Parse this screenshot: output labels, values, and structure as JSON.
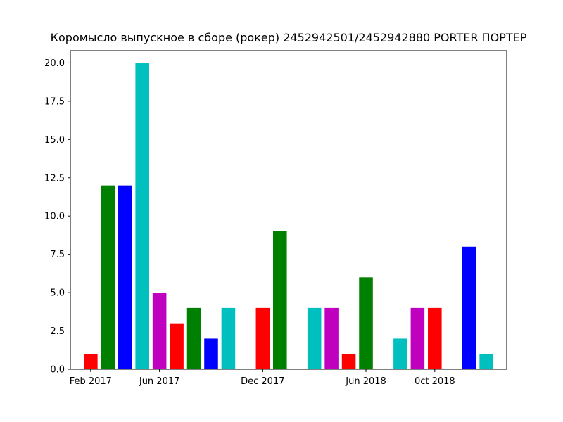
{
  "chart_data": {
    "type": "bar",
    "title": "Коромысло выпускное в сборе (рокер) 2452942501/2452942880 PORTER ПОРТЕР",
    "xlabel": "",
    "ylabel": "",
    "x_type": "date",
    "x_tick_labels": [
      "Feb 2017",
      "Jun 2017",
      "Dec 2017",
      "Jun 2018",
      "0ct 2018"
    ],
    "x_tick_dates": [
      "2017-02-01",
      "2017-06-01",
      "2017-12-01",
      "2018-06-01",
      "2018-10-01"
    ],
    "y_ticks": [
      "0.0",
      "2.5",
      "5.0",
      "7.5",
      "10.0",
      "12.5",
      "15.0",
      "17.5",
      "20.0"
    ],
    "ylim": [
      0,
      20.8
    ],
    "grid": false,
    "legend": "none",
    "colors": {
      "red": "#ff0000",
      "green": "#008000",
      "blue": "#0000ff",
      "cyan": "#00bfbf",
      "magenta": "#bf00bf"
    },
    "bars": [
      {
        "date": "2017-02-01",
        "value": 1,
        "color": "red"
      },
      {
        "date": "2017-03-01",
        "value": 12,
        "color": "green"
      },
      {
        "date": "2017-04-01",
        "value": 12,
        "color": "blue"
      },
      {
        "date": "2017-05-01",
        "value": 20,
        "color": "cyan"
      },
      {
        "date": "2017-06-01",
        "value": 5,
        "color": "magenta"
      },
      {
        "date": "2017-07-01",
        "value": 3,
        "color": "red"
      },
      {
        "date": "2017-08-01",
        "value": 4,
        "color": "green"
      },
      {
        "date": "2017-09-01",
        "value": 2,
        "color": "blue"
      },
      {
        "date": "2017-10-01",
        "value": 4,
        "color": "cyan"
      },
      {
        "date": "2017-12-01",
        "value": 4,
        "color": "red"
      },
      {
        "date": "2018-01-01",
        "value": 9,
        "color": "green"
      },
      {
        "date": "2018-03-01",
        "value": 4,
        "color": "cyan"
      },
      {
        "date": "2018-04-01",
        "value": 4,
        "color": "magenta"
      },
      {
        "date": "2018-05-01",
        "value": 1,
        "color": "red"
      },
      {
        "date": "2018-06-01",
        "value": 6,
        "color": "green"
      },
      {
        "date": "2018-08-01",
        "value": 2,
        "color": "cyan"
      },
      {
        "date": "2018-09-01",
        "value": 4,
        "color": "magenta"
      },
      {
        "date": "2018-10-01",
        "value": 4,
        "color": "red"
      },
      {
        "date": "2018-12-01",
        "value": 8,
        "color": "blue"
      },
      {
        "date": "2019-01-01",
        "value": 1,
        "color": "cyan"
      }
    ]
  }
}
